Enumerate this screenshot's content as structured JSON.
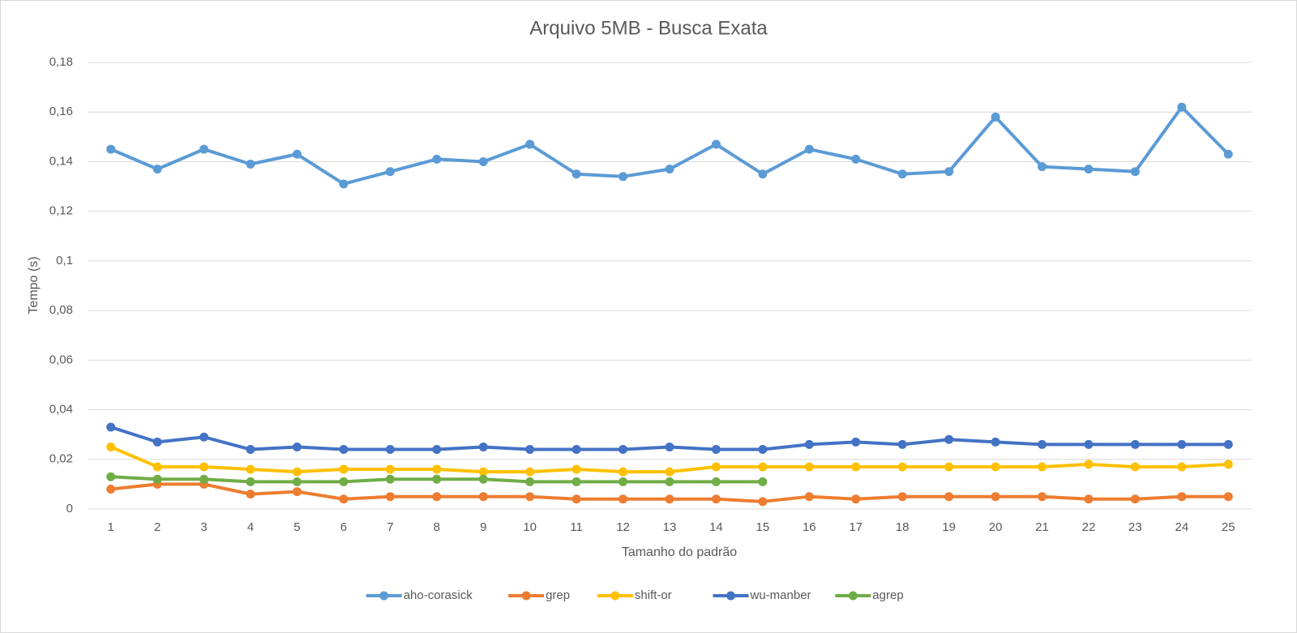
{
  "chart_data": {
    "type": "line",
    "title": "Arquivo 5MB - Busca Exata",
    "x_label": "Tamanho do padrão",
    "y_label": "Tempo (s)",
    "categories": [
      "1",
      "2",
      "3",
      "4",
      "5",
      "6",
      "7",
      "8",
      "9",
      "10",
      "11",
      "12",
      "13",
      "14",
      "15",
      "16",
      "17",
      "18",
      "19",
      "20",
      "21",
      "22",
      "23",
      "24",
      "25"
    ],
    "series": [
      {
        "name": "aho-corasick",
        "color": "#5b9bd5",
        "values": [
          0.145,
          0.137,
          0.145,
          0.139,
          0.143,
          0.131,
          0.136,
          0.141,
          0.14,
          0.147,
          0.135,
          0.134,
          0.137,
          0.147,
          0.135,
          0.145,
          0.141,
          0.135,
          0.136,
          0.158,
          0.138,
          0.137,
          0.136,
          0.162,
          0.143
        ]
      },
      {
        "name": "grep",
        "color": "#ed7d31",
        "values": [
          0.008,
          0.01,
          0.01,
          0.006,
          0.007,
          0.004,
          0.005,
          0.005,
          0.005,
          0.005,
          0.004,
          0.004,
          0.004,
          0.004,
          0.003,
          0.005,
          0.004,
          0.005,
          0.005,
          0.005,
          0.005,
          0.004,
          0.004,
          0.005,
          0.005
        ]
      },
      {
        "name": "shift-or",
        "color": "#ffc000",
        "values": [
          0.025,
          0.017,
          0.017,
          0.016,
          0.015,
          0.016,
          0.016,
          0.016,
          0.015,
          0.015,
          0.016,
          0.015,
          0.015,
          0.017,
          0.017,
          0.017,
          0.017,
          0.017,
          0.017,
          0.017,
          0.017,
          0.018,
          0.017,
          0.017,
          0.018
        ]
      },
      {
        "name": "wu-manber",
        "color": "#4472c4",
        "values": [
          0.033,
          0.027,
          0.029,
          0.024,
          0.025,
          0.024,
          0.024,
          0.024,
          0.025,
          0.024,
          0.024,
          0.024,
          0.025,
          0.024,
          0.024,
          0.026,
          0.027,
          0.026,
          0.028,
          0.027,
          0.026,
          0.026,
          0.026,
          0.026,
          0.026
        ]
      },
      {
        "name": "agrep",
        "color": "#70ad47",
        "values": [
          0.013,
          0.012,
          0.012,
          0.011,
          0.011,
          0.011,
          0.012,
          0.012,
          0.012,
          0.011,
          0.011,
          0.011,
          0.011,
          0.011,
          0.011,
          null,
          null,
          null,
          null,
          null,
          null,
          null,
          null,
          null,
          null
        ]
      }
    ],
    "ylim": [
      0,
      0.18
    ],
    "yticks": [
      0,
      {
        "value": 0.02,
        "label": "0,02"
      },
      {
        "value": 0.04,
        "label": "0,04"
      },
      {
        "value": 0.06,
        "label": "0,06"
      },
      {
        "value": 0.08,
        "label": "0,08"
      },
      {
        "value": 0.1,
        "label": "0,1"
      },
      {
        "value": 0.12,
        "label": "0,12"
      },
      {
        "value": 0.14,
        "label": "0,14"
      },
      {
        "value": 0.16,
        "label": "0,16"
      },
      {
        "value": 0.18,
        "label": "0,18"
      }
    ],
    "grid": true,
    "legend": "bottom"
  }
}
